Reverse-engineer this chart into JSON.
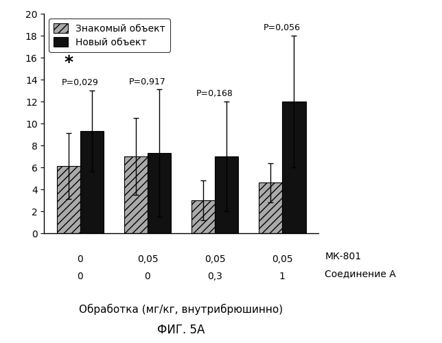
{
  "groups": [
    {
      "mk801": "0",
      "compound_a": "0",
      "familiar": 6.1,
      "novel": 9.3,
      "familiar_err": 3.0,
      "novel_err": 3.7,
      "p_label": "P=0,029",
      "star": true
    },
    {
      "mk801": "0,05",
      "compound_a": "0",
      "familiar": 7.0,
      "novel": 7.3,
      "familiar_err": 3.5,
      "novel_err": 5.8,
      "p_label": "P=0,917",
      "star": false
    },
    {
      "mk801": "0,05",
      "compound_a": "0,3",
      "familiar": 3.0,
      "novel": 7.0,
      "familiar_err": 1.8,
      "novel_err": 5.0,
      "p_label": "P=0,168",
      "star": false
    },
    {
      "mk801": "0,05",
      "compound_a": "1",
      "familiar": 4.6,
      "novel": 12.0,
      "familiar_err": 1.8,
      "novel_err": 6.0,
      "p_label": "P=0,056",
      "star": false
    }
  ],
  "ylim": [
    0,
    20
  ],
  "yticks": [
    0,
    2,
    4,
    6,
    8,
    10,
    12,
    14,
    16,
    18,
    20
  ],
  "bar_width": 0.35,
  "familiar_color": "#aaaaaa",
  "novel_color": "#111111",
  "familiar_label": "Знакомый объект",
  "novel_label": "Новый объект",
  "xlabel_line1": "Обработка (мг/кг, внутрибрюшинно)",
  "fig_label": "ФИГ. 5A",
  "mk801_label": "МК-801",
  "compound_a_label": "Соединение A",
  "background_color": "#ffffff",
  "star_label": "*"
}
